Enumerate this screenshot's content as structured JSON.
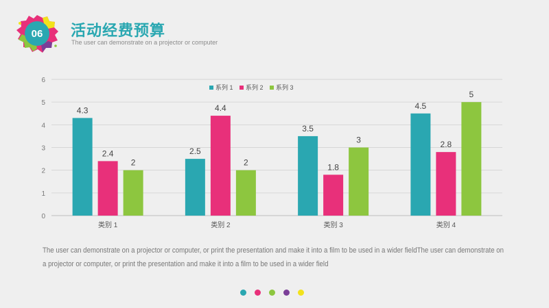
{
  "header": {
    "number": "06",
    "title": "活动经费预算",
    "subtitle": "The user can demonstrate on a projector or computer"
  },
  "description": "The user can demonstrate on a projector or computer, or print the presentation and make it into a film to be used in a wider fieldThe user can demonstrate on a projector or computer, or print the presentation and make it into a film to be used in a wider field",
  "footer_dots": [
    "#2aa7b1",
    "#e8307a",
    "#8dc63f",
    "#7b3f98",
    "#f2e21c"
  ],
  "colors": {
    "title": "#2aa7b1",
    "text": "#777777",
    "grid": "#d6d6d6"
  },
  "chart_data": {
    "type": "bar",
    "categories": [
      "类别 1",
      "类别 2",
      "类别 3",
      "类别 4"
    ],
    "series": [
      {
        "name": "系列 1",
        "color": "#2aa7b1",
        "values": [
          4.3,
          2.5,
          3.5,
          4.5
        ]
      },
      {
        "name": "系列 2",
        "color": "#e8307a",
        "values": [
          2.4,
          4.4,
          1.8,
          2.8
        ]
      },
      {
        "name": "系列 3",
        "color": "#8dc63f",
        "values": [
          2,
          2,
          3,
          5
        ]
      }
    ],
    "yticks": [
      "0",
      "1",
      "2",
      "3",
      "4",
      "5",
      "6"
    ],
    "data_labels": [
      [
        "4.3",
        "2.4",
        "2"
      ],
      [
        "2.5",
        "4.4",
        "2"
      ],
      [
        "3.5",
        "1.8",
        "3"
      ],
      [
        "4.5",
        "2.8",
        "5"
      ]
    ],
    "ylim": [
      0,
      6
    ],
    "grid": true,
    "legend_position": "top-center"
  }
}
